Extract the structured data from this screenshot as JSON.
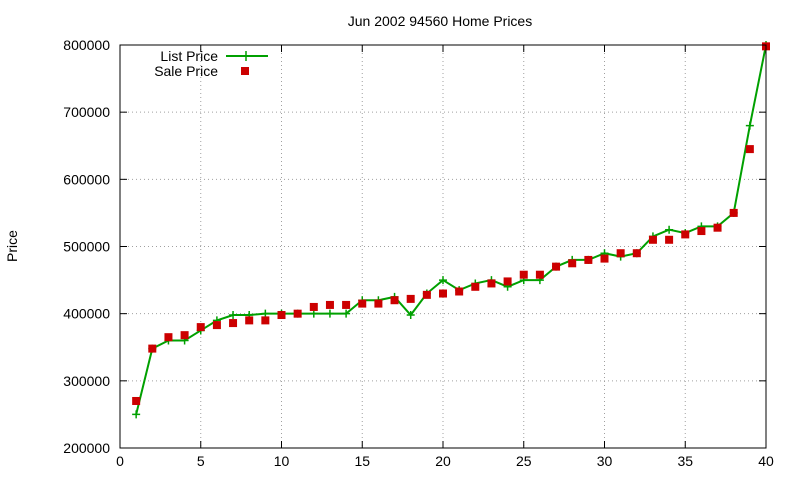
{
  "chart_data": {
    "type": "line",
    "title": "Jun 2002 94560 Home Prices",
    "xlabel": "",
    "ylabel": "Price",
    "xlim": [
      0,
      40
    ],
    "ylim": [
      200000,
      800000
    ],
    "xticks": [
      0,
      5,
      10,
      15,
      20,
      25,
      30,
      35,
      40
    ],
    "yticks": [
      200000,
      300000,
      400000,
      500000,
      600000,
      700000,
      800000
    ],
    "grid": true,
    "legend_position": "top-left",
    "x": [
      1,
      2,
      3,
      4,
      5,
      6,
      7,
      8,
      9,
      10,
      11,
      12,
      13,
      14,
      15,
      16,
      17,
      18,
      19,
      20,
      21,
      22,
      23,
      24,
      25,
      26,
      27,
      28,
      29,
      30,
      31,
      32,
      33,
      34,
      35,
      36,
      37,
      38,
      39,
      40
    ],
    "series": [
      {
        "name": "List Price",
        "style": "line-plus",
        "color": "#00a000",
        "values": [
          250000,
          348000,
          360000,
          360000,
          375000,
          390000,
          398000,
          398000,
          400000,
          400000,
          400000,
          400000,
          400000,
          400000,
          420000,
          420000,
          425000,
          398000,
          430000,
          450000,
          435000,
          445000,
          450000,
          440000,
          450000,
          450000,
          470000,
          480000,
          480000,
          490000,
          485000,
          490000,
          515000,
          525000,
          520000,
          530000,
          530000,
          550000,
          680000,
          800000
        ]
      },
      {
        "name": "Sale Price",
        "style": "square",
        "color": "#cc0000",
        "values": [
          270000,
          348000,
          365000,
          368000,
          380000,
          383000,
          386000,
          390000,
          390000,
          398000,
          400000,
          410000,
          413000,
          413000,
          415000,
          415000,
          420000,
          422000,
          428000,
          430000,
          433000,
          440000,
          445000,
          448000,
          458000,
          458000,
          470000,
          475000,
          480000,
          482000,
          490000,
          490000,
          510000,
          510000,
          518000,
          523000,
          528000,
          550000,
          645000,
          798000
        ]
      }
    ]
  }
}
